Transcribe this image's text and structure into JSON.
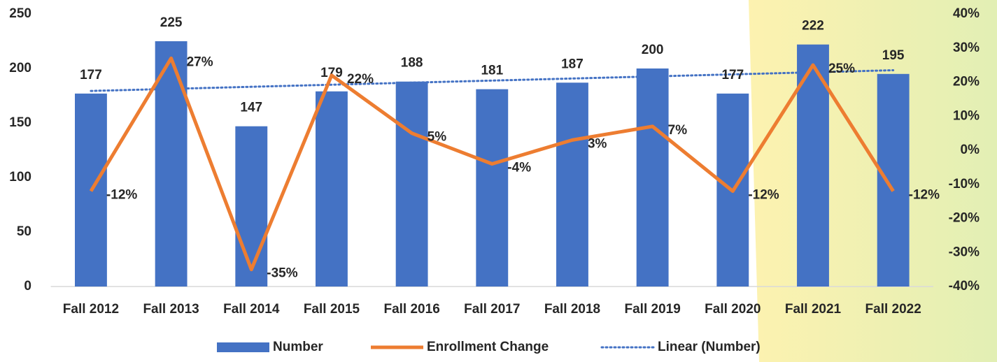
{
  "chart_data": {
    "type": "bar",
    "categories": [
      "Fall 2012",
      "Fall 2013",
      "Fall 2014",
      "Fall 2015",
      "Fall 2016",
      "Fall 2017",
      "Fall 2018",
      "Fall 2019",
      "Fall 2020",
      "Fall 2021",
      "Fall 2022"
    ],
    "series": [
      {
        "name": "Number",
        "type": "bar",
        "color": "#4472c4",
        "values": [
          177,
          225,
          147,
          179,
          188,
          181,
          187,
          200,
          177,
          222,
          195
        ]
      },
      {
        "name": "Enrollment Change",
        "type": "line",
        "axis": "y2",
        "color": "#ed7d31",
        "values": [
          -12,
          27,
          -35,
          22,
          5,
          -4,
          3,
          7,
          -12,
          25,
          -12
        ],
        "value_labels": [
          "-12%",
          "27%",
          "-35%",
          "22%",
          "5%",
          "-4%",
          "3%",
          "7%",
          "-12%",
          "25%",
          "-12%"
        ]
      }
    ],
    "trendline": {
      "name": "Linear (Number)",
      "color": "#4472c4"
    },
    "ylim": [
      0,
      250
    ],
    "yticks": [
      0,
      50,
      100,
      150,
      200,
      250
    ],
    "y2lim": [
      -40,
      40
    ],
    "y2ticks": [
      {
        "value": -40,
        "label": "-40%"
      },
      {
        "value": -30,
        "label": "-30%"
      },
      {
        "value": -20,
        "label": "-20%"
      },
      {
        "value": -10,
        "label": "-10%"
      },
      {
        "value": 0,
        "label": "0%"
      },
      {
        "value": 10,
        "label": "10%"
      },
      {
        "value": 20,
        "label": "20%"
      },
      {
        "value": 30,
        "label": "30%"
      },
      {
        "value": 40,
        "label": "40%"
      }
    ],
    "grid": false
  }
}
